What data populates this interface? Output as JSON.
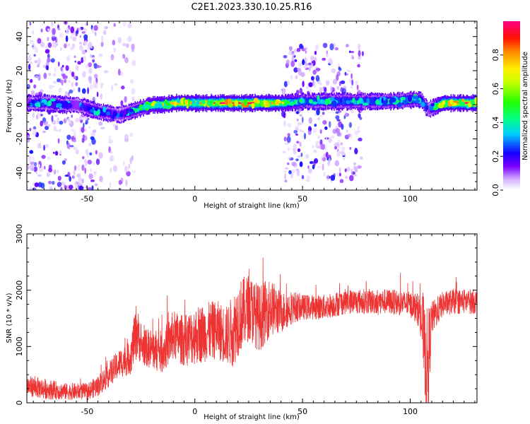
{
  "title": "C2E1.2023.330.10.25.R16",
  "colorbar": {
    "label": "Normalized spectral amplitude",
    "ticks": [
      0.0,
      0.2,
      0.4,
      0.6,
      0.8
    ],
    "tick_labels": [
      "0.0",
      "0.2",
      "0.4",
      "0.6",
      "0.8"
    ],
    "range": [
      0,
      1
    ],
    "colormap": "rainbow"
  },
  "chart_data": [
    {
      "type": "heatmap",
      "xlabel": "Height of straight line (km)",
      "ylabel": "Frequency (Hz)",
      "xlim": [
        -78,
        131
      ],
      "ylim": [
        -50,
        49
      ],
      "xticks": [
        -50,
        0,
        50,
        100
      ],
      "xtick_labels": [
        "-50",
        "0",
        "50",
        "100"
      ],
      "yticks": [
        -40,
        -20,
        0,
        20,
        40
      ],
      "ytick_labels": [
        "-40",
        "-20",
        "0",
        "20",
        "40"
      ],
      "ridge": {
        "x": [
          -78,
          -70,
          -60,
          -55,
          -50,
          -45,
          -40,
          -35,
          -30,
          -25,
          -20,
          -15,
          -10,
          -5,
          0,
          10,
          20,
          30,
          40,
          50,
          60,
          70,
          80,
          90,
          100,
          105,
          108,
          115,
          131
        ],
        "freq": [
          1,
          1,
          0,
          0,
          -2,
          -4,
          -5,
          -6,
          -4,
          -2,
          0,
          0,
          1,
          1,
          1,
          1,
          1,
          1,
          1,
          2,
          2,
          2,
          2,
          2,
          3,
          3,
          -3,
          1,
          1
        ],
        "peak_amplitude": [
          0.4,
          0.5,
          0.45,
          0.4,
          0.45,
          0.5,
          0.45,
          0.4,
          0.5,
          0.6,
          0.85,
          0.9,
          0.9,
          0.9,
          0.95,
          1.0,
          1.0,
          1.0,
          0.9,
          0.55,
          0.55,
          0.55,
          0.55,
          0.55,
          0.6,
          0.5,
          0.35,
          0.95,
          1.0
        ]
      },
      "noise_regions": [
        {
          "x": [
            -78,
            -45
          ],
          "freq": [
            -50,
            49
          ],
          "amplitude": 0.2
        },
        {
          "x": [
            -45,
            -28
          ],
          "freq": [
            -50,
            49
          ],
          "amplitude": 0.08
        },
        {
          "x": [
            41,
            78
          ],
          "freq": [
            -45,
            35
          ],
          "amplitude": 0.2
        }
      ]
    },
    {
      "type": "line",
      "xlabel": "Height of straight line (km)",
      "ylabel": "SNR (10 * v/v)",
      "xlim": [
        -78,
        131
      ],
      "ylim": [
        0,
        3000
      ],
      "xticks": [
        -50,
        0,
        50,
        100
      ],
      "xtick_labels": [
        "-50",
        "0",
        "50",
        "100"
      ],
      "yticks": [
        0,
        1000,
        2000,
        3000
      ],
      "ytick_labels": [
        "0",
        "1000",
        "2000",
        "3000"
      ],
      "series": [
        {
          "color": "#ee3333",
          "envelope_x": [
            -78,
            -70,
            -60,
            -50,
            -45,
            -40,
            -35,
            -30,
            -27,
            -25,
            -20,
            -15,
            -10,
            -5,
            0,
            5,
            10,
            15,
            18,
            20,
            25,
            30,
            35,
            40,
            45,
            50,
            60,
            70,
            80,
            90,
            100,
            104,
            106,
            107,
            108,
            110,
            115,
            120,
            131
          ],
          "envelope_mean": [
            300,
            250,
            200,
            200,
            300,
            500,
            700,
            800,
            1300,
            1000,
            950,
            900,
            1200,
            1100,
            1200,
            1250,
            1300,
            1200,
            1300,
            1500,
            1700,
            1500,
            1700,
            1600,
            1700,
            1700,
            1700,
            1800,
            1800,
            1800,
            1750,
            1650,
            1300,
            800,
            600,
            1500,
            1750,
            1800,
            1800
          ],
          "envelope_spread": [
            250,
            250,
            200,
            200,
            250,
            300,
            350,
            400,
            700,
            400,
            500,
            500,
            600,
            600,
            700,
            700,
            700,
            700,
            900,
            900,
            800,
            800,
            700,
            500,
            400,
            300,
            300,
            300,
            300,
            300,
            300,
            400,
            900,
            1000,
            1500,
            400,
            300,
            300,
            300
          ]
        }
      ]
    }
  ]
}
